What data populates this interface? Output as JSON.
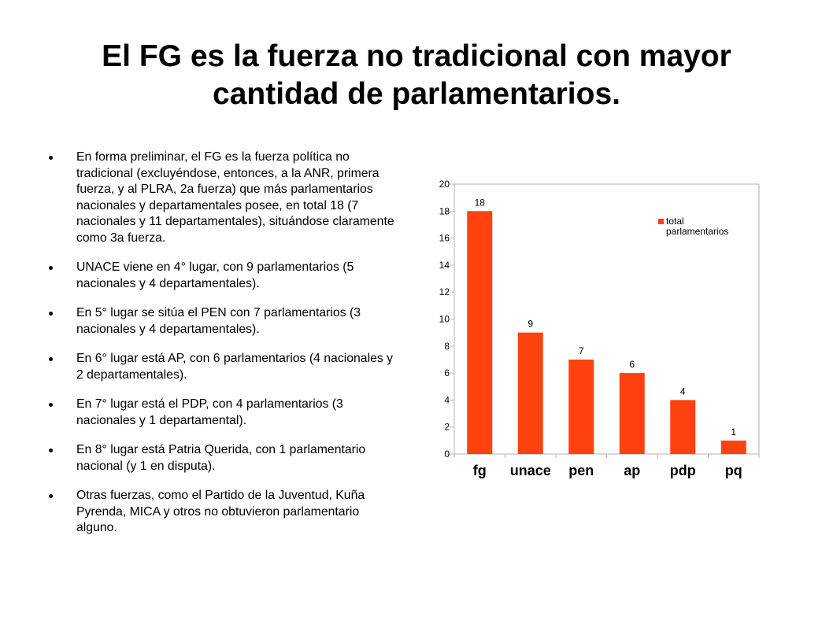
{
  "slide": {
    "title_lines": [
      "El FG es la fuerza no tradicional con mayor",
      "cantidad de parlamentarios."
    ],
    "bullets": [
      "En forma preliminar, el FG es la fuerza política no tradicional (excluyéndose, entonces, a la ANR, primera fuerza, y al PLRA, 2a fuerza) que más parlamentarios nacionales y departamentales posee, en total 18 (7 nacionales y 11 departamentales), situándose claramente como 3a fuerza.",
      "UNACE viene en 4° lugar, con 9 parlamentarios (5 nacionales y 4 departamentales).",
      "En 5° lugar se sitúa el PEN con 7 parlamentarios (3 nacionales y 4 departamentales).",
      "En 6° lugar está AP, con 6 parlamentarios (4 nacionales y 2 departamentales).",
      "En 7° lugar está el PDP, con 4 parlamentarios (3 nacionales y 1 departamental).",
      "En 8° lugar está Patria Querida, con 1 parlamentario nacional (y 1 en disputa).",
      "Otras fuerzas, como el Partido de la Juventud, Kuña Pyrenda, MICA y otros no obtuvieron parlamentario alguno."
    ]
  },
  "chart_data": {
    "type": "bar",
    "categories": [
      "fg",
      "unace",
      "pen",
      "ap",
      "pdp",
      "pq"
    ],
    "series": [
      {
        "name": "total parlamentarios",
        "values": [
          18,
          9,
          7,
          6,
          4,
          1
        ]
      }
    ],
    "legend_lines": [
      "total",
      "parlamentarios"
    ],
    "ylim": [
      0,
      20
    ],
    "yticks": [
      0,
      2,
      4,
      6,
      8,
      10,
      12,
      14,
      16,
      18,
      20
    ],
    "data_labels": true,
    "grid": false,
    "legend_position": "top-right",
    "bar_color": "#ff420e"
  }
}
